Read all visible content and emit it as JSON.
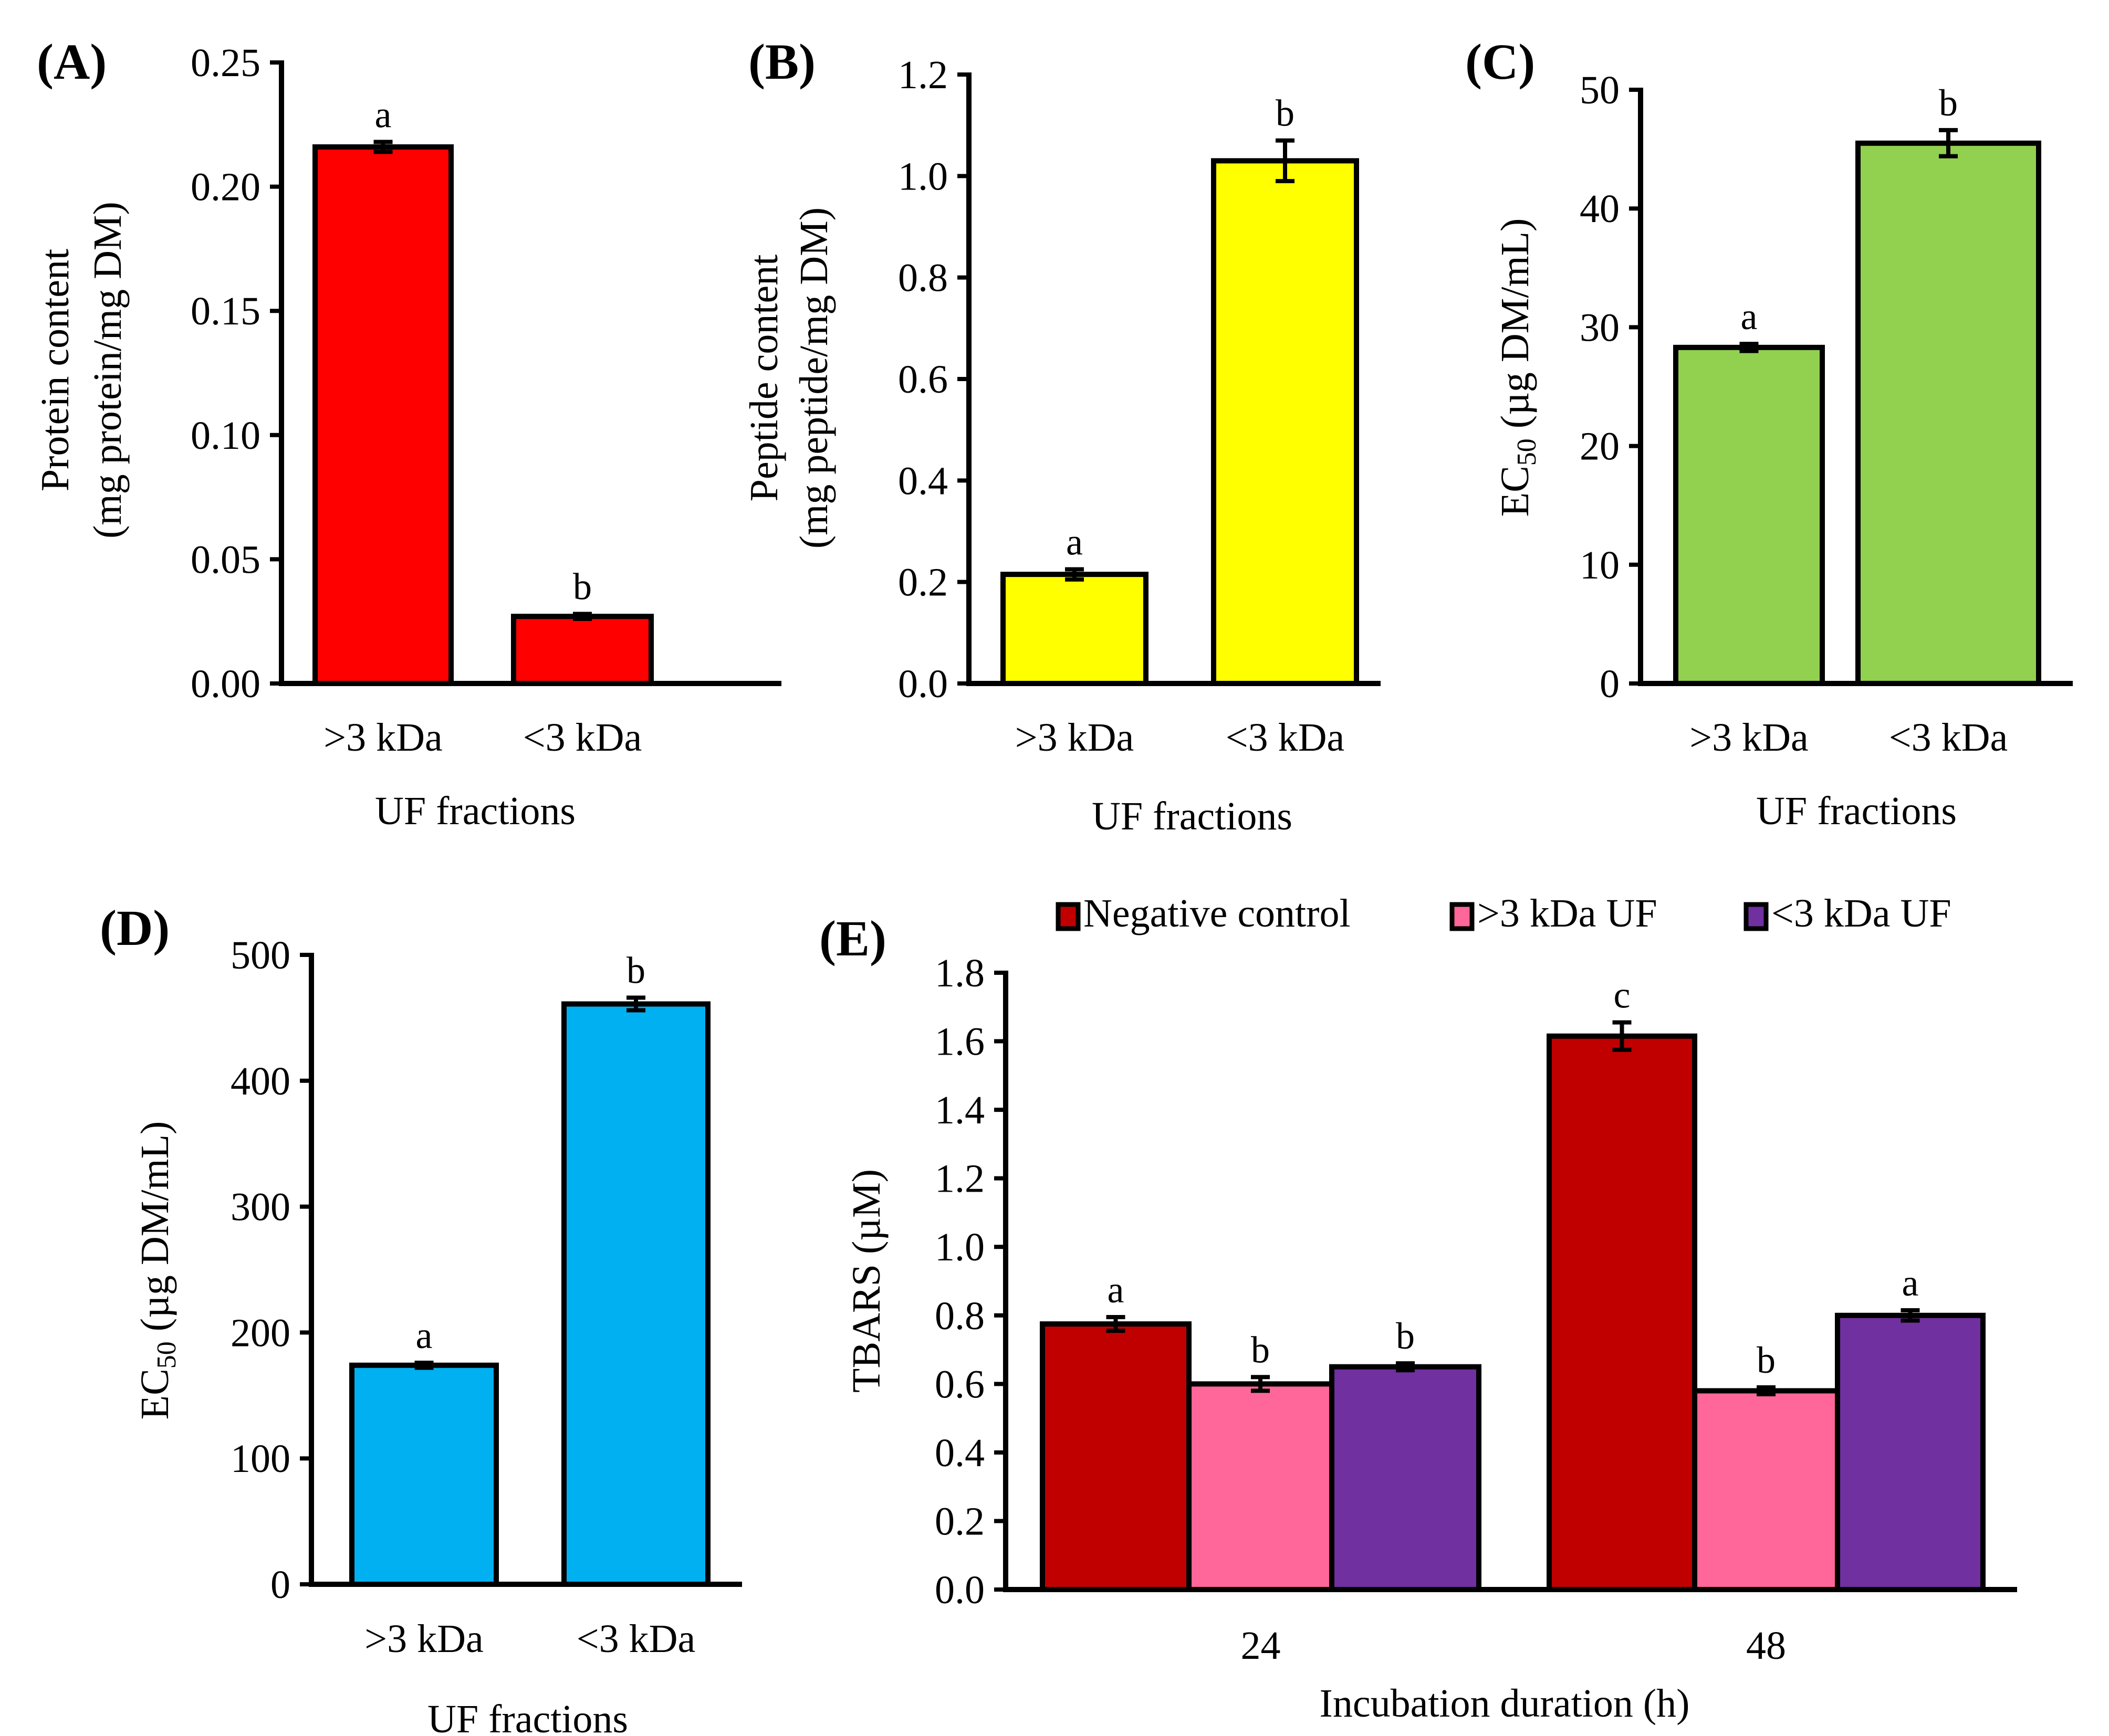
{
  "chart_data": [
    {
      "panel": "(A)",
      "type": "bar",
      "categories": [
        ">3 kDa",
        "<3 kDa"
      ],
      "values": [
        0.216,
        0.027
      ],
      "errors": [
        0.002,
        0.001
      ],
      "significance": [
        "a",
        "b"
      ],
      "color": "#FF0000",
      "xlabel": "UF fractions",
      "ylabel": [
        "Protein content",
        "(mg protein/mg DM)"
      ],
      "ylim": [
        0,
        0.25
      ],
      "yticks": [
        "0.00",
        "0.05",
        "0.10",
        "0.15",
        "0.20",
        "0.25"
      ],
      "grid": false
    },
    {
      "panel": "(B)",
      "type": "bar",
      "categories": [
        ">3 kDa",
        "<3 kDa"
      ],
      "values": [
        0.215,
        1.03
      ],
      "errors": [
        0.01,
        0.04
      ],
      "significance": [
        "a",
        "b"
      ],
      "color": "#FFFF00",
      "xlabel": "UF fractions",
      "ylabel": [
        "Peptide content",
        "(mg peptide/mg DM)"
      ],
      "ylim": [
        0,
        1.2
      ],
      "yticks": [
        "0.0",
        "0.2",
        "0.4",
        "0.6",
        "0.8",
        "1.0",
        "1.2"
      ],
      "grid": false
    },
    {
      "panel": "(C)",
      "type": "bar",
      "categories": [
        ">3 kDa",
        "<3 kDa"
      ],
      "values": [
        28.3,
        45.5
      ],
      "errors": [
        0.3,
        1.1
      ],
      "significance": [
        "a",
        "b"
      ],
      "color": "#92D050",
      "xlabel": "UF fractions",
      "ylabel_main": "EC",
      "ylabel_sub": "50",
      "ylabel_rest": " (µg DM/mL)",
      "ylim": [
        0,
        50
      ],
      "yticks": [
        "0",
        "10",
        "20",
        "30",
        "40",
        "50"
      ],
      "grid": false
    },
    {
      "panel": "(D)",
      "type": "bar",
      "categories": [
        ">3 kDa",
        "<3 kDa"
      ],
      "values": [
        174,
        461
      ],
      "errors": [
        2,
        5
      ],
      "significance": [
        "a",
        "b"
      ],
      "color": "#00B0F0",
      "xlabel": "UF fractions",
      "ylabel_main": "EC",
      "ylabel_sub": "50",
      "ylabel_rest": " (µg DM/mL)",
      "ylim": [
        0,
        500
      ],
      "yticks": [
        "0",
        "100",
        "200",
        "300",
        "400",
        "500"
      ],
      "grid": false
    },
    {
      "panel": "(E)",
      "type": "bar",
      "categories": [
        "24",
        "48"
      ],
      "series": [
        {
          "name": "Negative control",
          "color": "#C00000",
          "values": [
            0.775,
            1.615
          ],
          "errors": [
            0.02,
            0.04
          ],
          "significance": [
            "a",
            "c"
          ]
        },
        {
          "name": ">3 kDa UF",
          "color": "#FF6699",
          "values": [
            0.6,
            0.58
          ],
          "errors": [
            0.02,
            0.01
          ],
          "significance": [
            "b",
            "b"
          ]
        },
        {
          "name": "<3 kDa UF",
          "color": "#7030A0",
          "values": [
            0.65,
            0.8
          ],
          "errors": [
            0.01,
            0.015
          ],
          "significance": [
            "b",
            "a"
          ]
        }
      ],
      "xlabel": "Incubation duration (h)",
      "ylabel": "TBARS (µM)",
      "ylim": [
        0,
        1.8
      ],
      "yticks": [
        "0.0",
        "0.2",
        "0.4",
        "0.6",
        "0.8",
        "1.0",
        "1.2",
        "1.4",
        "1.6",
        "1.8"
      ],
      "legend": "top",
      "grid": false
    }
  ]
}
